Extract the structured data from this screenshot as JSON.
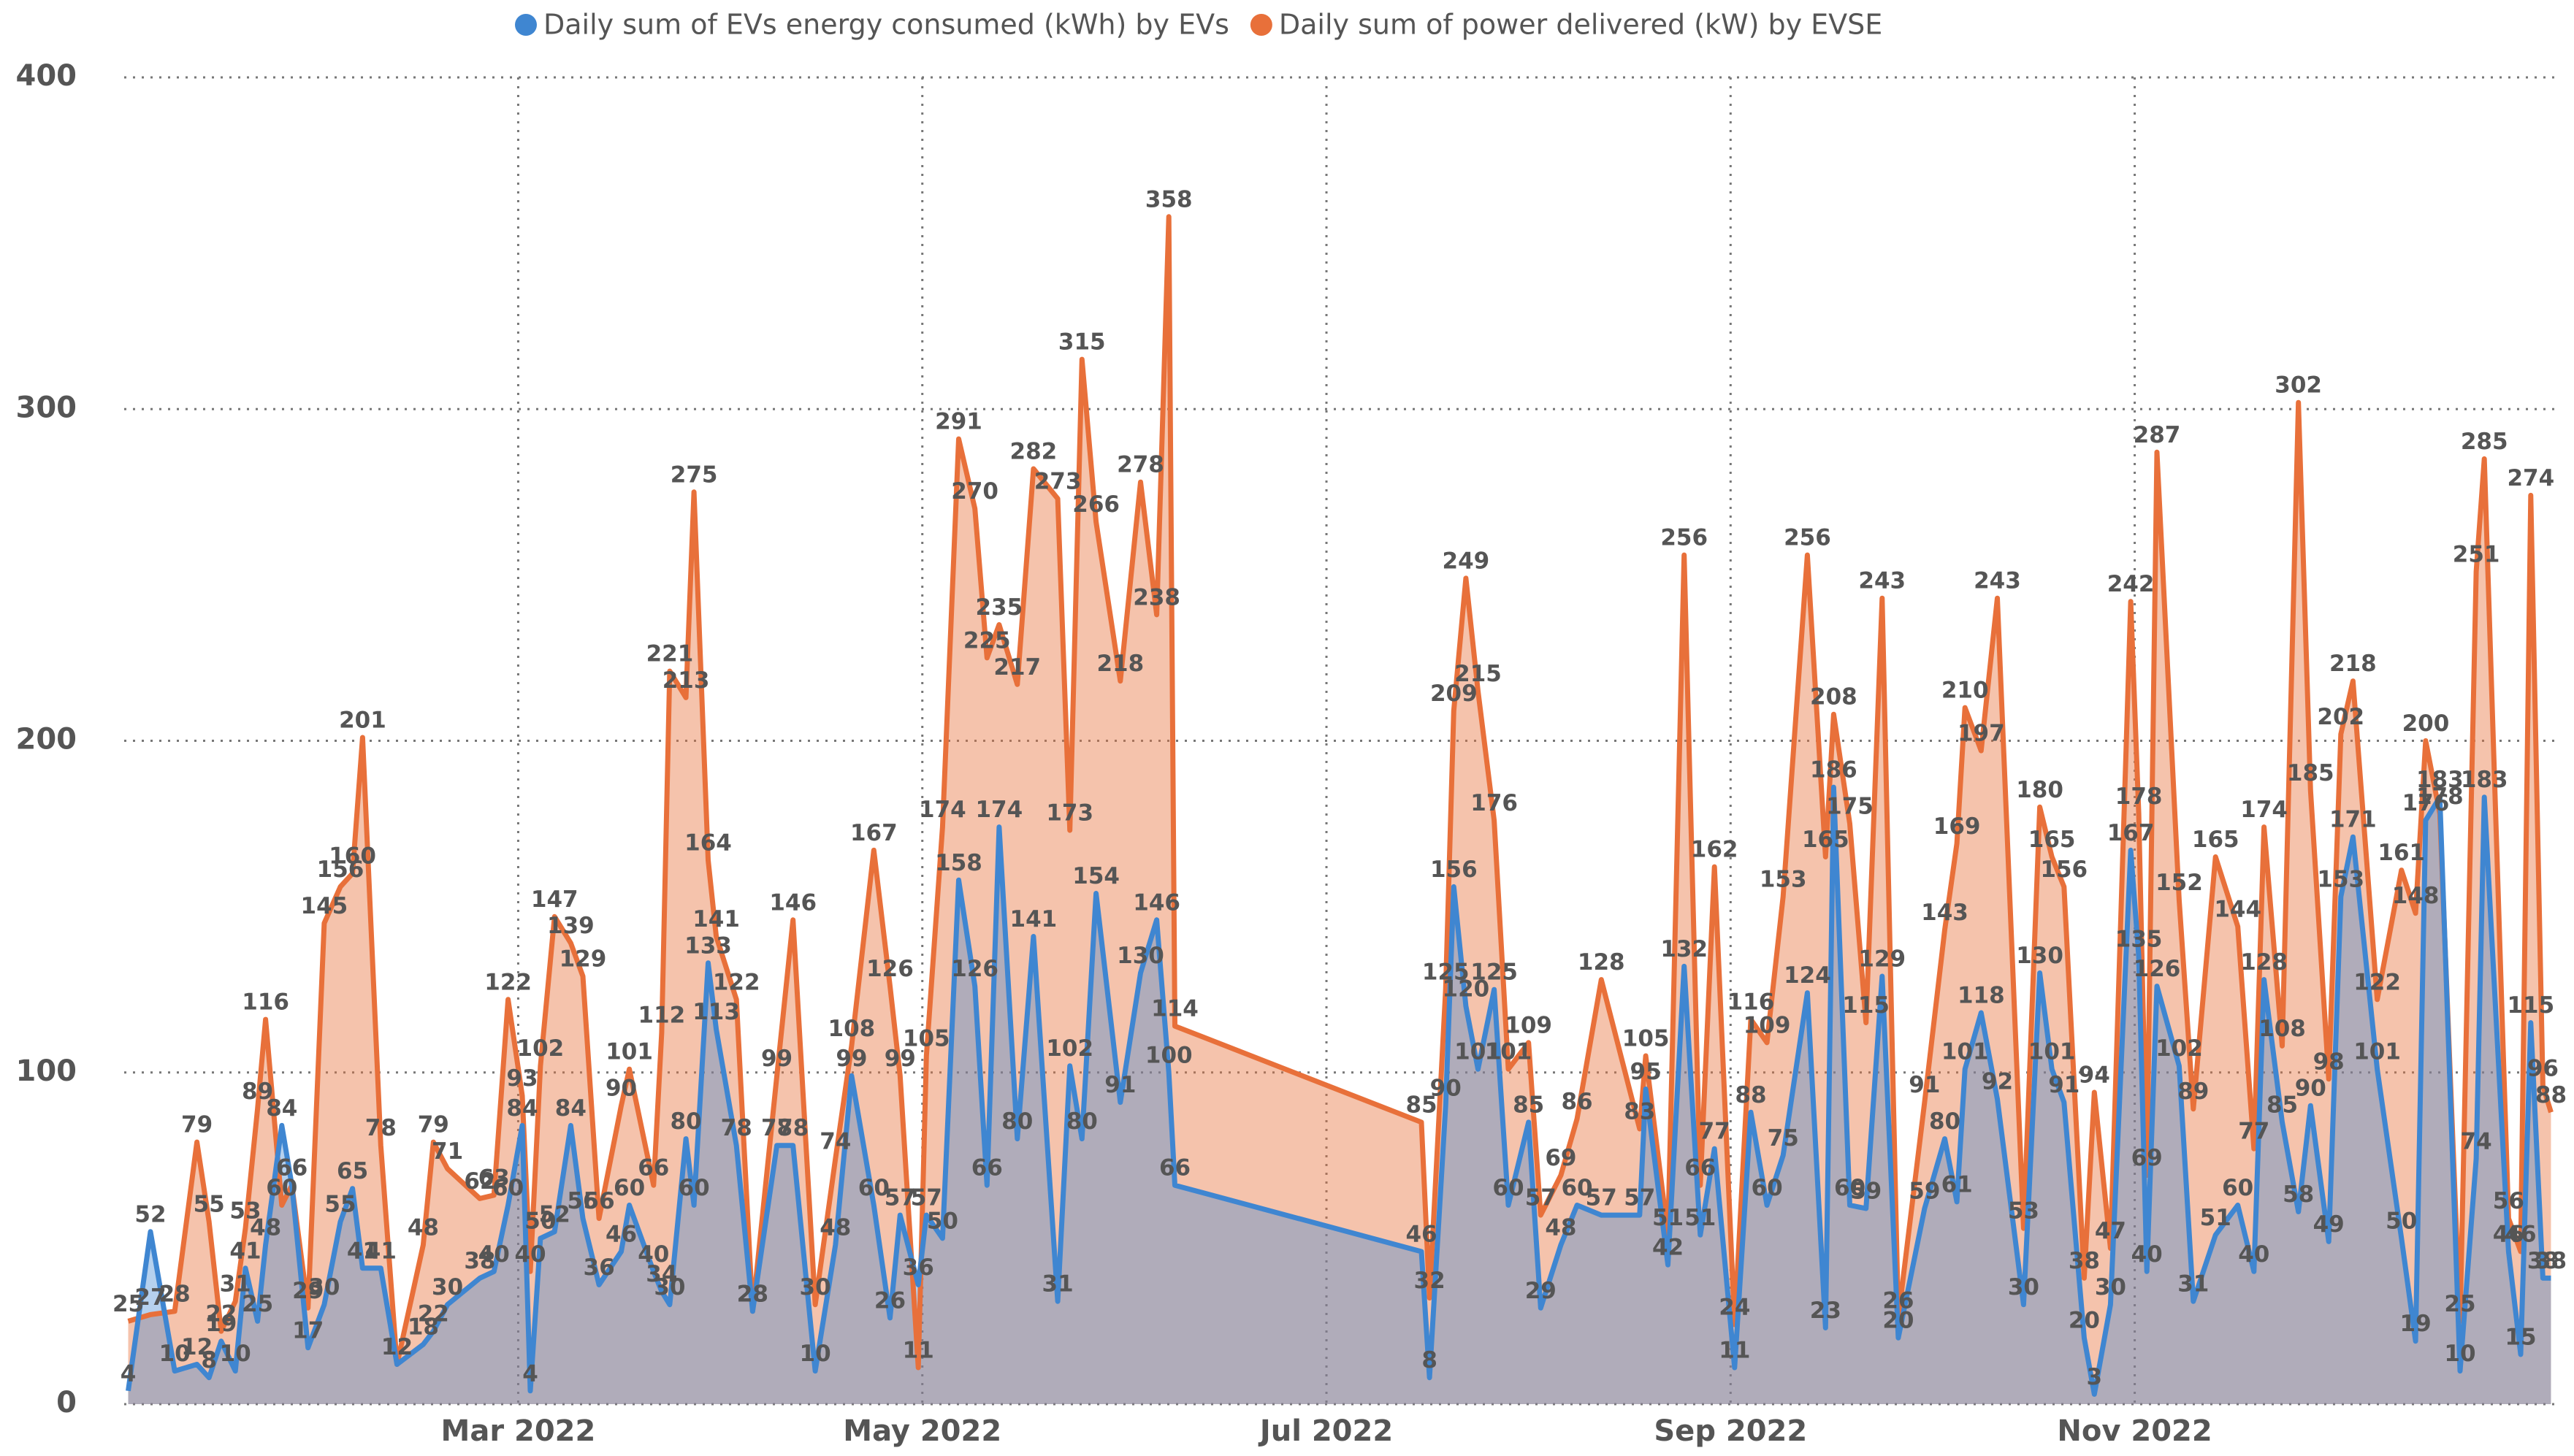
{
  "chart_data": {
    "type": "area",
    "x": [
      1.07,
      1.18,
      1.3,
      1.41,
      1.47,
      1.53,
      1.6,
      1.65,
      1.71,
      1.75,
      1.83,
      1.88,
      1.96,
      2.04,
      2.12,
      2.18,
      2.23,
      2.32,
      2.4,
      2.53,
      2.58,
      2.65,
      2.81,
      2.88,
      2.95,
      3.02,
      3.06,
      3.11,
      3.18,
      3.26,
      3.32,
      3.4,
      3.51,
      3.55,
      3.67,
      3.71,
      3.75,
      3.83,
      3.87,
      3.94,
      3.98,
      4.08,
      4.16,
      4.28,
      4.36,
      4.47,
      4.57,
      4.65,
      4.76,
      4.84,
      4.89,
      4.98,
      5.02,
      5.1,
      5.18,
      5.26,
      5.32,
      5.38,
      5.47,
      5.55,
      5.67,
      5.73,
      5.79,
      5.86,
      5.98,
      6.08,
      6.16,
      6.22,
      6.25,
      7.47,
      7.51,
      7.59,
      7.63,
      7.69,
      7.75,
      7.83,
      7.9,
      8.0,
      8.06,
      8.16,
      8.24,
      8.36,
      8.55,
      8.58,
      8.69,
      8.77,
      8.85,
      8.92,
      9.02,
      9.1,
      9.18,
      9.26,
      9.38,
      9.47,
      9.51,
      9.59,
      9.67,
      9.75,
      9.83,
      9.96,
      10.06,
      10.12,
      10.16,
      10.24,
      10.32,
      10.45,
      10.53,
      10.59,
      10.65,
      10.75,
      10.8,
      10.88,
      10.98,
      11.02,
      11.06,
      11.11,
      11.22,
      11.29,
      11.4,
      11.51,
      11.59,
      11.64,
      11.73,
      11.81,
      11.87,
      11.96,
      12.02,
      12.08,
      12.2,
      12.32,
      12.39,
      12.44,
      12.51,
      12.61,
      12.69,
      12.73,
      12.85,
      12.91,
      12.96,
      13.02,
      13.06
    ],
    "series": [
      {
        "name": "Daily sum of power delivered (kW) by EVSE",
        "color": "#e8703a",
        "values": [
          25,
          27,
          28,
          79,
          55,
          22,
          31,
          53,
          89,
          116,
          60,
          66,
          29,
          145,
          156,
          160,
          201,
          78,
          12,
          48,
          79,
          71,
          62,
          63,
          122,
          93,
          40,
          102,
          147,
          139,
          129,
          56,
          90,
          101,
          66,
          112,
          221,
          213,
          275,
          164,
          141,
          122,
          28,
          99,
          146,
          30,
          74,
          108,
          167,
          126,
          99,
          11,
          105,
          174,
          291,
          270,
          225,
          235,
          217,
          282,
          273,
          173,
          315,
          266,
          218,
          278,
          238,
          358,
          114,
          85,
          32,
          125,
          209,
          249,
          215,
          176,
          101,
          109,
          57,
          69,
          86,
          128,
          83,
          105,
          51,
          256,
          66,
          162,
          24,
          116,
          109,
          153,
          256,
          165,
          208,
          175,
          115,
          243,
          26,
          91,
          143,
          169,
          210,
          197,
          243,
          53,
          180,
          165,
          156,
          38,
          94,
          47,
          242,
          178,
          69,
          287,
          152,
          89,
          165,
          144,
          77,
          174,
          108,
          302,
          185,
          98,
          202,
          218,
          122,
          161,
          148,
          200,
          178,
          25,
          251,
          285,
          56,
          46,
          274,
          96,
          88
        ]
      },
      {
        "name": "Daily sum of EVs energy consumed (kWh) by EVs",
        "color": "#3f86d1",
        "values": [
          4,
          52,
          10,
          12,
          8,
          19,
          10,
          41,
          25,
          48,
          84,
          66,
          17,
          30,
          55,
          65,
          41,
          41,
          12,
          18,
          22,
          30,
          38,
          40,
          60,
          84,
          4,
          50,
          52,
          84,
          56,
          36,
          46,
          60,
          40,
          34,
          30,
          80,
          60,
          133,
          113,
          78,
          28,
          78,
          78,
          10,
          48,
          99,
          60,
          26,
          57,
          36,
          57,
          50,
          158,
          126,
          66,
          174,
          80,
          141,
          31,
          102,
          80,
          154,
          91,
          130,
          146,
          100,
          66,
          46,
          8,
          90,
          156,
          120,
          101,
          125,
          60,
          85,
          29,
          48,
          60,
          57,
          57,
          95,
          42,
          132,
          51,
          77,
          11,
          88,
          60,
          75,
          124,
          23,
          186,
          60,
          59,
          129,
          20,
          59,
          80,
          61,
          101,
          118,
          92,
          30,
          130,
          101,
          91,
          20,
          3,
          30,
          167,
          135,
          40,
          126,
          102,
          31,
          51,
          60,
          40,
          128,
          85,
          58,
          90,
          49,
          153,
          171,
          101,
          50,
          19,
          176,
          183,
          10,
          74,
          183,
          46,
          15,
          115,
          38,
          38
        ]
      }
    ],
    "xlim": [
      1.05,
      13.08
    ],
    "xticks": [
      {
        "value": 3,
        "label": "Mar 2022"
      },
      {
        "value": 5,
        "label": "May 2022"
      },
      {
        "value": 7,
        "label": "Jul 2022"
      },
      {
        "value": 9,
        "label": "Sep 2022"
      },
      {
        "value": 11,
        "label": "Nov 2022"
      }
    ],
    "ylim": [
      0,
      400
    ],
    "yticks": [
      0,
      100,
      200,
      300,
      400
    ],
    "grid": true,
    "legend": "top"
  }
}
